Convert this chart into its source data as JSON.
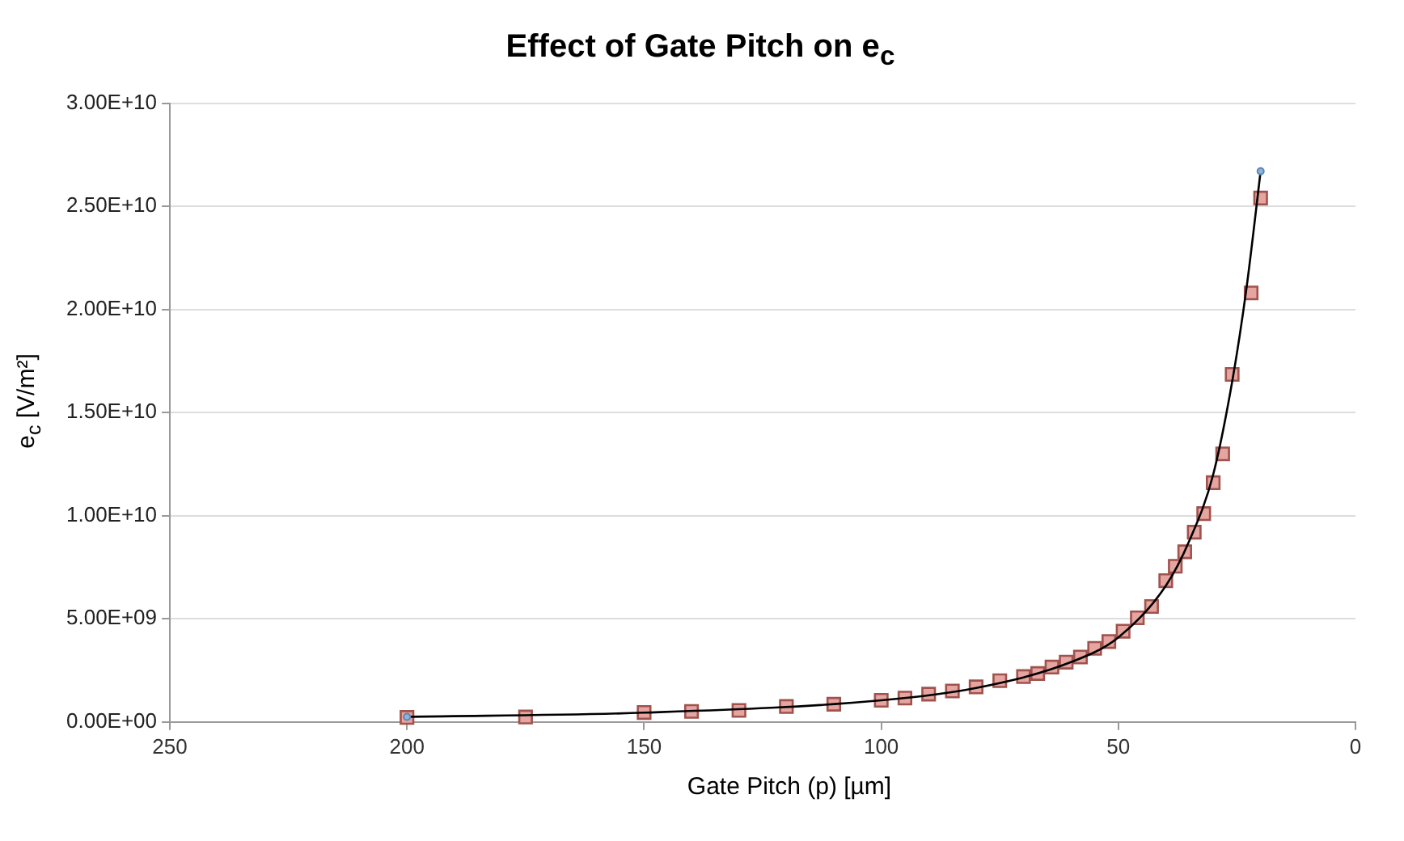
{
  "chart_data": {
    "type": "scatter",
    "title": "Effect of Gate Pitch on e$_{c}$",
    "xlabel": "Gate Pitch (p) [µm]",
    "ylabel": "e$_{c}$ [V/m²]",
    "xlim": [
      250,
      0
    ],
    "xticks": [
      250,
      200,
      150,
      100,
      50,
      0
    ],
    "ylim": [
      0,
      30000000000
    ],
    "yticks": [
      {
        "value": 0,
        "label": "0.00E+00"
      },
      {
        "value": 5000000000,
        "label": "5.00E+09"
      },
      {
        "value": 10000000000,
        "label": "1.00E+10"
      },
      {
        "value": 15000000000,
        "label": "1.50E+10"
      },
      {
        "value": 20000000000,
        "label": "2.00E+10"
      },
      {
        "value": 25000000000,
        "label": "2.50E+10"
      },
      {
        "value": 30000000000,
        "label": "3.00E+10"
      }
    ],
    "grid": "y",
    "legend": false,
    "series": [
      {
        "marker": "square",
        "color": "#e6a5a0",
        "x": [
          200,
          175,
          150,
          140,
          130,
          120,
          110,
          100,
          95,
          90,
          85,
          80,
          75,
          70,
          67,
          64,
          61,
          58,
          55,
          52,
          49,
          46,
          43,
          40,
          38,
          36,
          34,
          32,
          30,
          28,
          26,
          22,
          20
        ],
        "values": [
          220000000,
          240000000,
          460000000,
          510000000,
          560000000,
          750000000,
          860000000,
          1050000000,
          1160000000,
          1350000000,
          1500000000,
          1700000000,
          2000000000,
          2200000000,
          2350000000,
          2660000000,
          2900000000,
          3150000000,
          3570000000,
          3900000000,
          4400000000,
          5050000000,
          5600000000,
          6850000000,
          7550000000,
          8250000000,
          9200000000,
          10100000000,
          11600000000,
          13000000000,
          16850000000,
          20800000000,
          25400000000
        ]
      },
      {
        "type": "line",
        "marker": "none",
        "color": "#000000",
        "x": [
          200,
          150,
          100,
          80,
          60,
          50,
          40,
          35,
          30,
          26,
          23,
          20
        ],
        "values": [
          250000000,
          450000000,
          1050000000,
          1650000000,
          2900000000,
          4100000000,
          6600000000,
          8800000000,
          12000000000,
          16500000000,
          21000000000,
          26700000000
        ]
      },
      {
        "marker": "circle",
        "color": "#8fb4d9",
        "x": [
          200,
          20
        ],
        "values": [
          250000000,
          26700000000
        ]
      }
    ]
  }
}
